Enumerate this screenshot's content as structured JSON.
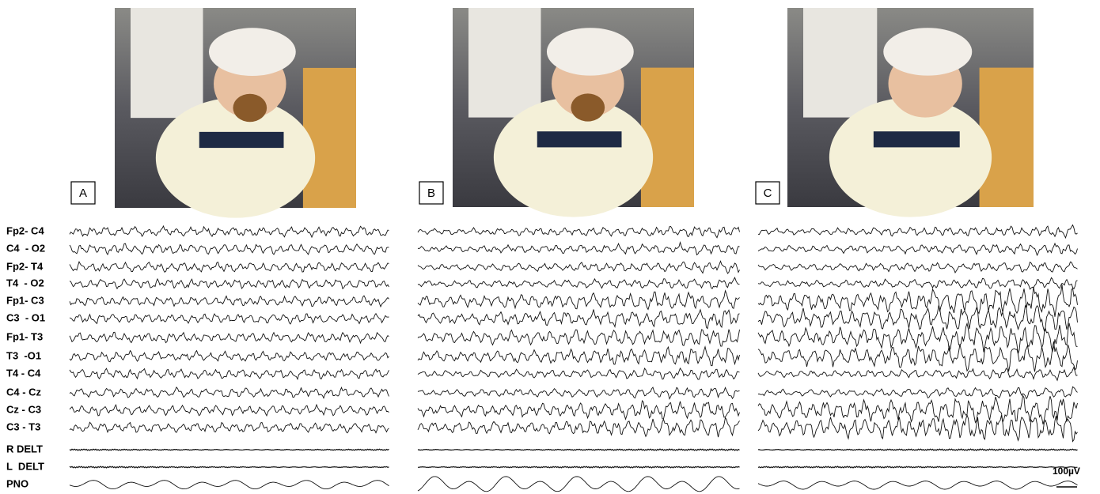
{
  "panels": [
    {
      "label": "A"
    },
    {
      "label": "B"
    },
    {
      "label": "C"
    }
  ],
  "channels": [
    "Fp2- C4",
    "C4  - O2",
    "Fp2- T4",
    "T4  - O2",
    "Fp1- C3",
    "C3  - O1",
    "Fp1- T3",
    "T3  -O1",
    "T4 - C4",
    "C4 - Cz",
    "Cz - C3",
    "C3 - T3",
    "R DELT",
    "L  DELT",
    "PNO"
  ],
  "scale_bar": {
    "label": "100µV"
  }
}
